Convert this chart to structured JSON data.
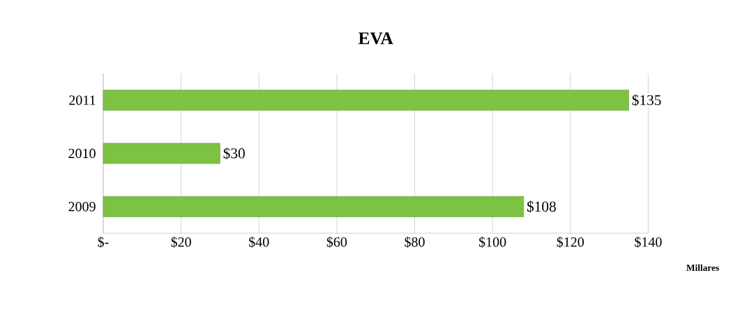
{
  "chart_data": {
    "type": "bar",
    "title": "EVA",
    "orientation": "horizontal",
    "xlabel": "Millares",
    "categories": [
      "2011",
      "2010",
      "2009"
    ],
    "values": [
      135,
      30,
      108
    ],
    "value_labels": [
      "$135",
      "$30",
      "$108"
    ],
    "color": "#7dc242",
    "xlim": [
      0,
      140
    ],
    "xticks": [
      {
        "value": 0,
        "label": "$-"
      },
      {
        "value": 20,
        "label": "$20"
      },
      {
        "value": 40,
        "label": "$40"
      },
      {
        "value": 60,
        "label": "$60"
      },
      {
        "value": 80,
        "label": "$80"
      },
      {
        "value": 100,
        "label": "$100"
      },
      {
        "value": 120,
        "label": "$120"
      },
      {
        "value": 140,
        "label": "$140"
      }
    ],
    "grid": "x"
  }
}
